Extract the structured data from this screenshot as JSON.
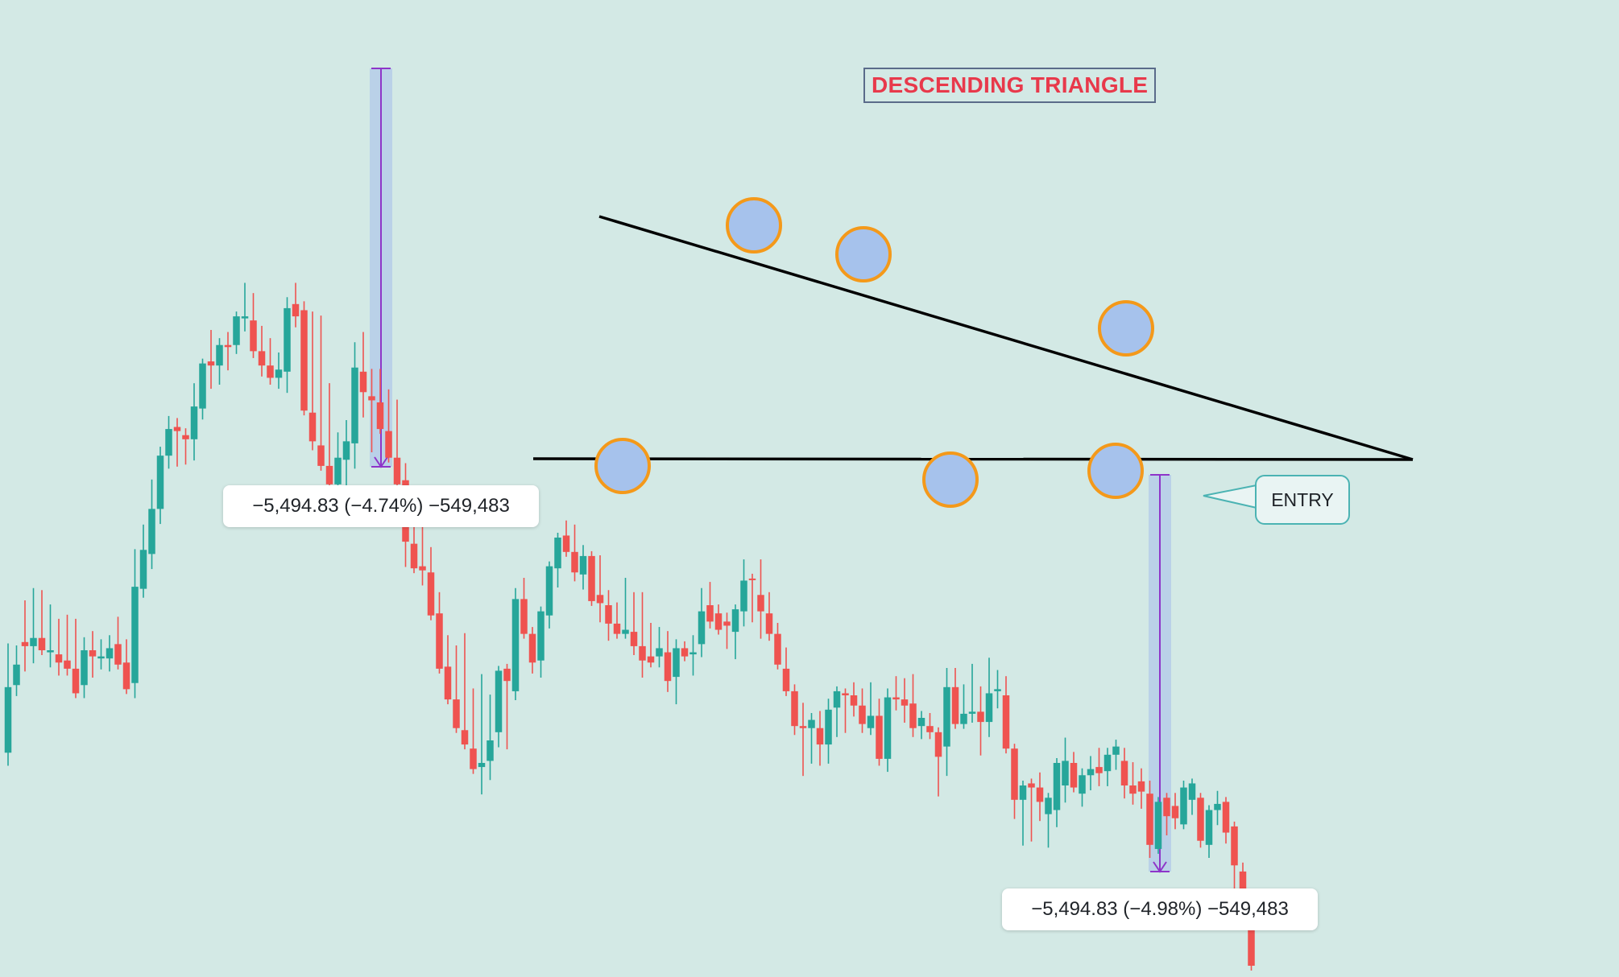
{
  "title": "DESCENDING TRIANGLE",
  "entry_label": "ENTRY",
  "measurements": [
    {
      "text": "−5,494.83 (−4.74%) −549,483"
    },
    {
      "text": "−5,494.83 (−4.98%) −549,483"
    }
  ],
  "colors": {
    "background": "#d3e9e5",
    "bull": "#26a69a",
    "bear": "#ef5350",
    "trendline": "#000000",
    "marker_fill": "#a6c2ec",
    "marker_stroke": "#f4991a",
    "measure_band": "#b5cde9",
    "measure_arrow": "#8e35c9",
    "title_text": "#e8394b",
    "title_border": "#5a6b8a",
    "callout_border": "#4bb3b3"
  },
  "chart_data": {
    "type": "candlestick",
    "title": "DESCENDING TRIANGLE",
    "annotations": [
      "DESCENDING TRIANGLE",
      "ENTRY",
      "−5,494.83 (−4.74%) −549,483",
      "−5,494.83 (−4.98%) −549,483"
    ],
    "ohlc": [
      [
        396,
        345,
        400,
        364
      ],
      [
        363,
        346,
        366,
        353
      ],
      [
        342,
        324,
        354,
        344
      ],
      [
        344,
        318,
        350,
        340
      ],
      [
        340,
        319,
        345,
        346
      ],
      [
        347,
        326,
        352,
        346
      ],
      [
        348,
        333,
        356,
        352
      ],
      [
        351,
        331,
        356,
        355
      ],
      [
        355,
        333,
        360,
        367
      ],
      [
        363,
        342,
        367,
        346
      ],
      [
        346,
        339,
        357,
        349
      ],
      [
        350,
        343,
        353,
        349
      ],
      [
        350,
        341,
        354,
        345
      ],
      [
        343,
        332,
        351,
        353
      ],
      [
        352,
        343,
        360,
        365
      ],
      [
        362,
        299,
        367,
        315
      ],
      [
        316,
        287,
        318,
        297
      ],
      [
        299,
        265,
        304,
        277
      ],
      [
        277,
        249,
        282,
        251
      ],
      [
        251,
        234,
        255,
        238
      ],
      [
        237,
        235,
        254,
        239
      ],
      [
        241,
        240,
        253,
        243
      ],
      [
        243,
        218,
        251,
        227
      ],
      [
        228,
        206,
        231,
        206
      ],
      [
        205,
        192,
        216,
        207
      ],
      [
        207,
        196,
        214,
        197
      ],
      [
        197,
        193,
        207,
        198
      ],
      [
        197,
        183,
        199,
        183
      ],
      [
        184,
        169,
        188,
        183
      ],
      [
        185,
        174,
        201,
        200
      ],
      [
        200,
        190,
        210,
        207
      ],
      [
        207,
        196,
        214,
        213
      ],
      [
        213,
        203,
        216,
        209
      ],
      [
        210,
        176,
        218,
        179
      ],
      [
        177,
        169,
        186,
        183
      ],
      [
        180,
        178,
        214,
        229
      ],
      [
        230,
        183,
        246,
        244
      ],
      [
        246,
        185,
        247,
        256
      ],
      [
        256,
        218,
        262,
        265
      ],
      [
        265,
        242,
        279,
        252
      ],
      [
        253,
        236,
        264,
        244
      ],
      [
        245,
        198,
        255,
        208
      ],
      [
        210,
        193,
        230,
        220
      ],
      [
        222,
        211,
        247,
        224
      ],
      [
        225,
        211,
        238,
        238
      ],
      [
        239,
        221,
        245,
        252
      ],
      [
        252,
        226,
        256,
        265
      ],
      [
        263,
        257,
        303,
        293
      ],
      [
        294,
        275,
        295,
        306
      ],
      [
        305,
        269,
        312,
        307
      ],
      [
        308,
        298,
        318,
        329
      ],
      [
        328,
        320,
        339,
        355
      ],
      [
        354,
        341,
        357,
        370
      ],
      [
        370,
        346,
        376,
        384
      ],
      [
        385,
        340,
        387,
        392
      ],
      [
        394,
        367,
        398,
        404
      ],
      [
        403,
        360,
        414,
        401
      ],
      [
        400,
        370,
        407,
        390
      ],
      [
        386,
        367,
        391,
        356
      ],
      [
        355,
        357,
        392,
        361
      ],
      [
        366,
        318,
        368,
        321
      ],
      [
        321,
        313,
        337,
        338
      ],
      [
        338,
        337,
        355,
        352
      ],
      [
        351,
        327,
        357,
        327
      ],
      [
        329,
        306,
        333,
        305
      ],
      [
        306,
        291,
        313,
        291
      ],
      [
        290,
        285,
        298,
        298
      ],
      [
        298,
        287,
        310,
        308
      ],
      [
        309,
        297,
        314,
        300
      ],
      [
        300,
        300,
        319,
        322
      ],
      [
        319,
        302,
        330,
        323
      ],
      [
        324,
        319,
        339,
        333
      ],
      [
        333,
        325,
        334,
        338
      ],
      [
        338,
        313,
        337,
        336
      ],
      [
        337,
        320,
        346,
        344
      ],
      [
        344,
        320,
        357,
        351
      ],
      [
        349,
        335,
        352,
        352
      ],
      [
        349,
        337,
        352,
        345
      ],
      [
        347,
        339,
        364,
        361
      ],
      [
        359,
        343,
        370,
        345
      ],
      [
        345,
        344,
        348,
        349
      ],
      [
        348,
        341,
        356,
        347
      ],
      [
        343,
        318,
        347,
        327
      ],
      [
        324,
        315,
        333,
        332
      ],
      [
        328,
        326,
        336,
        336
      ],
      [
        332,
        330,
        343,
        334
      ],
      [
        337,
        327,
        348,
        326
      ],
      [
        327,
        304,
        332,
        312
      ],
      [
        311,
        315,
        330,
        311
      ],
      [
        319,
        304,
        338,
        327
      ],
      [
        328,
        320,
        339,
        338
      ],
      [
        338,
        335,
        345,
        353
      ],
      [
        355,
        347,
        366,
        366
      ],
      [
        366,
        365,
        385,
        383
      ],
      [
        383,
        374,
        405,
        384
      ],
      [
        384,
        379,
        399,
        380
      ],
      [
        384,
        378,
        400,
        392
      ],
      [
        392,
        372,
        399,
        375
      ],
      [
        374,
        366,
        386,
        366
      ],
      [
        367,
        369,
        384,
        368
      ],
      [
        368,
        364,
        376,
        373
      ],
      [
        373,
        367,
        384,
        382
      ],
      [
        384,
        364,
        385,
        378
      ],
      [
        378,
        372,
        400,
        399
      ],
      [
        399,
        367,
        403,
        369
      ],
      [
        369,
        361,
        373,
        370
      ],
      [
        370,
        362,
        379,
        373
      ],
      [
        372,
        360,
        386,
        384
      ],
      [
        383,
        378,
        387,
        379
      ],
      [
        383,
        379,
        387,
        386
      ],
      [
        386,
        391,
        415,
        398
      ],
      [
        393,
        357,
        405,
        364
      ],
      [
        364,
        357,
        369,
        382
      ],
      [
        382,
        365,
        381,
        377
      ],
      [
        377,
        355,
        379,
        376
      ],
      [
        376,
        366,
        395,
        381
      ],
      [
        381,
        352,
        386,
        367
      ],
      [
        366,
        358,
        372,
        365
      ],
      [
        368,
        361,
        392,
        394
      ],
      [
        394,
        394,
        426,
        419
      ],
      [
        419,
        419,
        439,
        412
      ],
      [
        411,
        412,
        437,
        413
      ],
      [
        413,
        408,
        427,
        420
      ],
      [
        426,
        420,
        440,
        418
      ],
      [
        424,
        412,
        430,
        401
      ],
      [
        412,
        391,
        418,
        400
      ],
      [
        401,
        398,
        409,
        413
      ],
      [
        416,
        406,
        420,
        407
      ],
      [
        407,
        400,
        412,
        404
      ],
      [
        403,
        396,
        410,
        406
      ],
      [
        405,
        396,
        410,
        397
      ],
      [
        397,
        392,
        402,
        393
      ],
      [
        400,
        396,
        416,
        412
      ],
      [
        412,
        403,
        419,
        416
      ],
      [
        410,
        406,
        421,
        415
      ],
      [
        416,
        412,
        445,
        441
      ],
      [
        443,
        430,
        440,
        420
      ],
      [
        418,
        421,
        434,
        427
      ],
      [
        422,
        418,
        431,
        428
      ],
      [
        431,
        412,
        424,
        413
      ],
      [
        419,
        416,
        424,
        411
      ],
      [
        418,
        427,
        440,
        439
      ],
      [
        441,
        434,
        445,
        424
      ],
      [
        424,
        417,
        429,
        421
      ],
      [
        420,
        426,
        438,
        435
      ],
      [
        432,
        434,
        462,
        451
      ],
      [
        454,
        452,
        467,
        466
      ],
      [
        468,
        472,
        500,
        500
      ]
    ],
    "x_axis": "none shown",
    "y_axis": "none shown",
    "grid": false,
    "legend": "none"
  }
}
